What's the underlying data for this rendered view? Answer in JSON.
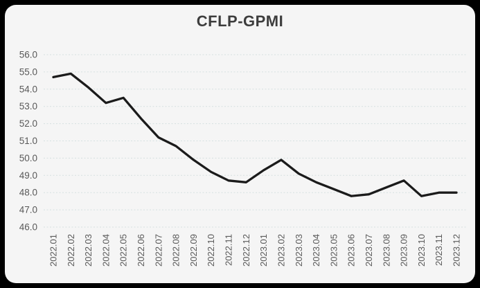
{
  "chart_data": {
    "type": "line",
    "title": "CFLP-GPMI",
    "categories": [
      "2022.01",
      "2022.02",
      "2022.03",
      "2022.04",
      "2022.05",
      "2022.06",
      "2022.07",
      "2022.08",
      "2022.09",
      "2022.10",
      "2022.11",
      "2022.12",
      "2023.01",
      "2023.02",
      "2023.03",
      "2023.04",
      "2023.05",
      "2023.06",
      "2023.07",
      "2023.08",
      "2023.09",
      "2023.10",
      "2023.11",
      "2023.12"
    ],
    "series": [
      {
        "name": "CFLP-GPMI",
        "values": [
          54.7,
          54.9,
          54.1,
          53.2,
          53.5,
          52.3,
          51.2,
          50.7,
          49.9,
          49.2,
          48.7,
          48.6,
          49.3,
          49.9,
          49.1,
          48.6,
          48.2,
          47.8,
          47.9,
          48.3,
          48.7,
          47.8,
          48.0,
          48.0
        ]
      }
    ],
    "ylim": [
      46.0,
      56.0
    ],
    "y_tick_labels": [
      "56.0",
      "55.0",
      "54.0",
      "53.0",
      "52.0",
      "51.0",
      "50.0",
      "49.0",
      "48.0",
      "47.0",
      "46.0"
    ],
    "x_tick_rotation": -90,
    "grid": "horizontal-dashed",
    "legend": "none",
    "colors": {
      "line": "#1b1b1b",
      "grid": "#d5e0e0",
      "card_background": "#f5f5f5",
      "outer_background": "#000000",
      "tick_text": "#595959",
      "title_text": "#3d3d3d"
    }
  }
}
